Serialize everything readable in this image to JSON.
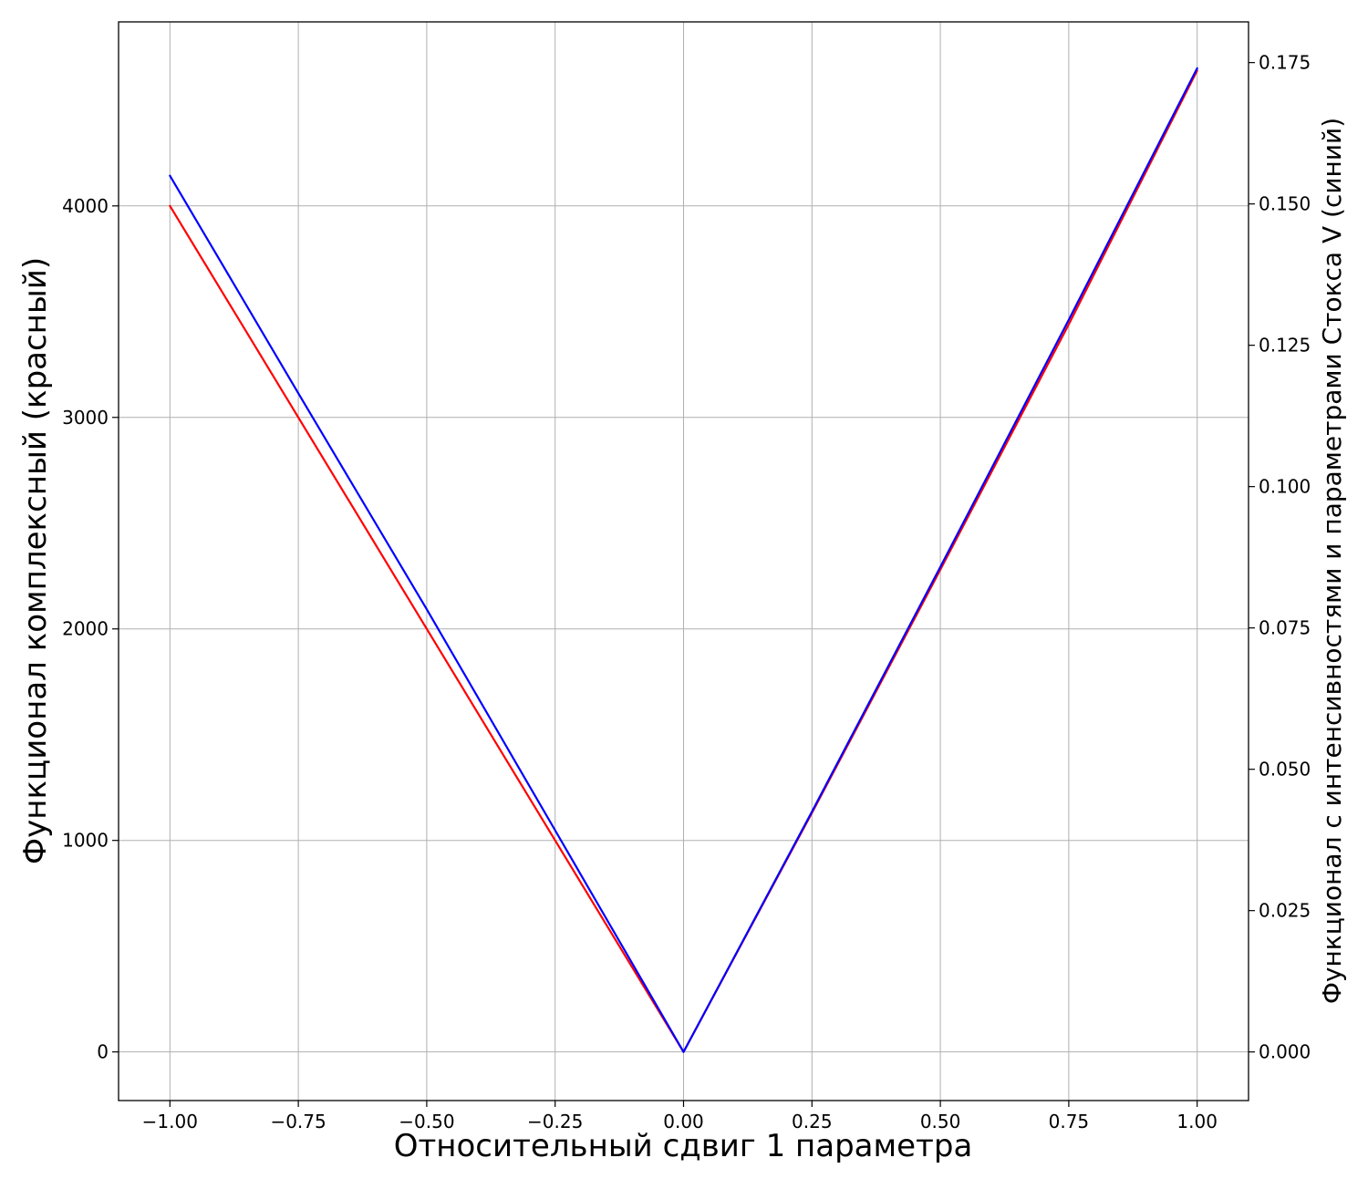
{
  "chart_data": {
    "type": "line",
    "xlabel": "Относительный сдвиг 1 параметра",
    "ylabel_left": "Функционал комплексный (красный)",
    "ylabel_right": "Функционал с интенсивностями и параметрами Стокса V (синий)",
    "xlim": [
      -1.1,
      1.1
    ],
    "ylim_left": [
      -230,
      4870
    ],
    "ylim_right": [
      -0.0086,
      0.1822
    ],
    "x_ticks": [
      -1.0,
      -0.75,
      -0.5,
      -0.25,
      0.0,
      0.25,
      0.5,
      0.75,
      1.0
    ],
    "x_tick_labels": [
      "−1.00",
      "−0.75",
      "−0.50",
      "−0.25",
      "0.00",
      "0.25",
      "0.50",
      "0.75",
      "1.00"
    ],
    "y_left_ticks": [
      0,
      1000,
      2000,
      3000,
      4000
    ],
    "y_left_tick_labels": [
      "0",
      "1000",
      "2000",
      "3000",
      "4000"
    ],
    "y_right_ticks": [
      0.0,
      0.025,
      0.05,
      0.075,
      0.1,
      0.125,
      0.15,
      0.175
    ],
    "y_right_tick_labels": [
      "0.000",
      "0.025",
      "0.050",
      "0.075",
      "0.100",
      "0.125",
      "0.150",
      "0.175"
    ],
    "grid": true,
    "series": [
      {
        "axis": "left",
        "color": "#ff0000",
        "x": [
          -1.0,
          -0.75,
          -0.5,
          -0.25,
          0.0,
          0.25,
          0.5,
          0.75,
          1.0
        ],
        "y": [
          4000,
          3000,
          2000,
          1000,
          0,
          1130,
          2280,
          3440,
          4640
        ]
      },
      {
        "axis": "right",
        "color": "#0000ff",
        "x": [
          -1.0,
          -0.75,
          -0.5,
          -0.25,
          0.0,
          0.25,
          0.5,
          0.75,
          1.0
        ],
        "y": [
          0.155,
          0.1165,
          0.0783,
          0.0392,
          0.0,
          0.0425,
          0.0858,
          0.1295,
          0.174
        ]
      }
    ]
  }
}
